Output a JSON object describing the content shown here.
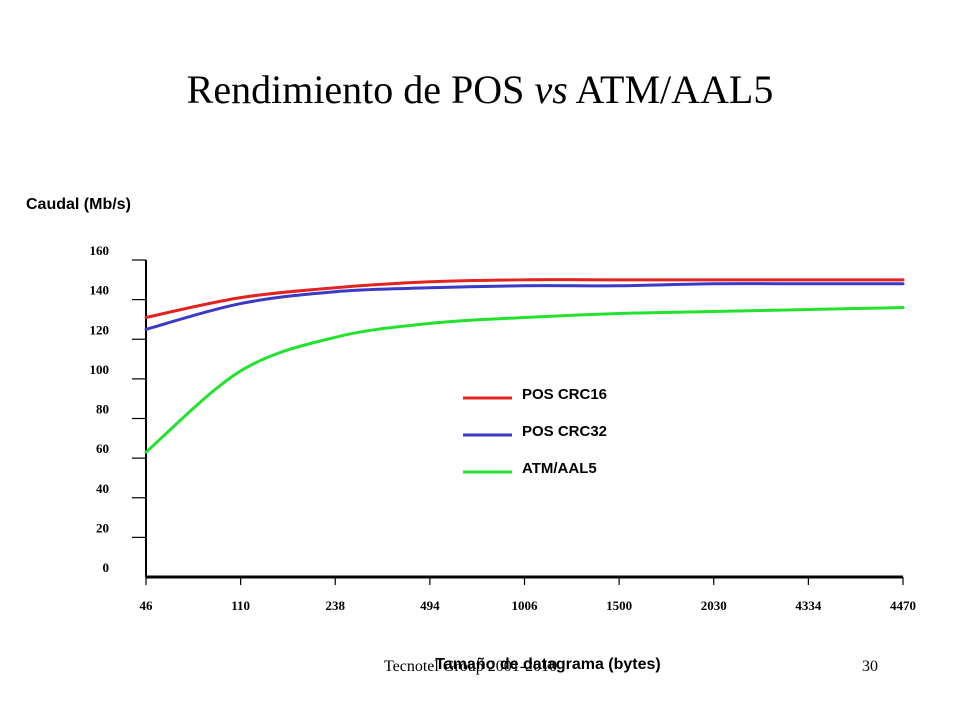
{
  "slide": {
    "title_main": "Rendimiento de POS ",
    "title_italic": "vs",
    "title_end": " ATM/AAL5",
    "footer_left": "Tecnotel Group 2001-2010",
    "page_number": "30"
  },
  "chart_data": {
    "type": "line",
    "ylabel": "Caudal (Mb/s)",
    "xlabel": "Tamaño de datagrama (bytes)",
    "categories": [
      "46",
      "110",
      "238",
      "494",
      "1006",
      "1500",
      "2030",
      "4334",
      "4470"
    ],
    "yticks": [
      0,
      20,
      40,
      60,
      80,
      100,
      120,
      140,
      160
    ],
    "ylim": [
      0,
      160
    ],
    "legend_position": "center-right",
    "grid": false,
    "series": [
      {
        "name": "POS CRC16",
        "color": "#e32222",
        "values": [
          131,
          141,
          146,
          149,
          150,
          150,
          150,
          150,
          150
        ]
      },
      {
        "name": "POS CRC32",
        "color": "#3a3ac4",
        "values": [
          125,
          138,
          144,
          146,
          147,
          147,
          148,
          148,
          148
        ]
      },
      {
        "name": "ATM/AAL5",
        "color": "#22e22e",
        "values": [
          63,
          104,
          121,
          128,
          131,
          133,
          134,
          135,
          136
        ]
      }
    ]
  }
}
